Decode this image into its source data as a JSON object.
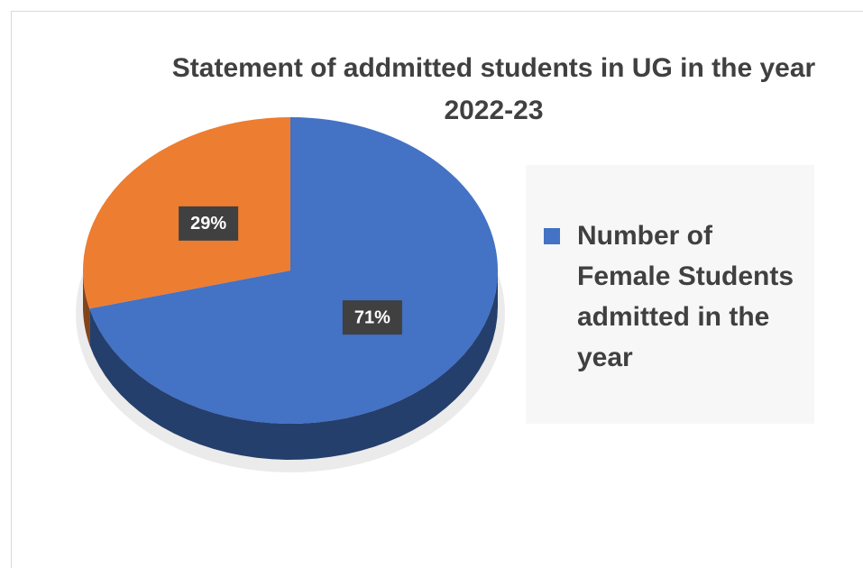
{
  "chart_data": {
    "type": "pie",
    "title": "Statement of addmitted students in UG in the year 2022-23",
    "categories": [
      "Number of Female Students admitted in the year",
      null
    ],
    "values": [
      71,
      29
    ],
    "value_labels": [
      "71%",
      "29%"
    ],
    "colors": [
      "#4472c4",
      "#ed7d31"
    ],
    "legend": "right"
  }
}
